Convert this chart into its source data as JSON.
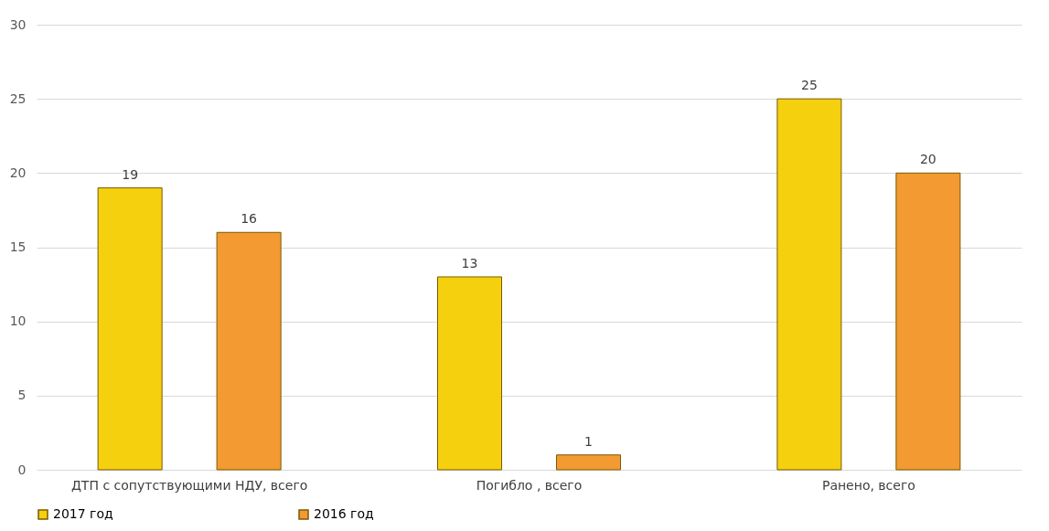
{
  "chart_data": {
    "type": "bar",
    "categories": [
      "ДТП с сопутствующими НДУ, всего",
      "Погибло , всего",
      "Ранено, всего"
    ],
    "series": [
      {
        "name": "2017 год",
        "color": "#f5d00f",
        "values": [
          19,
          13,
          25
        ]
      },
      {
        "name": "2016 год",
        "color": "#f39a32",
        "values": [
          16,
          1,
          20
        ]
      }
    ],
    "ylim": [
      0,
      30
    ],
    "yticks": [
      0,
      5,
      10,
      15,
      20,
      25,
      30
    ],
    "grid": "y",
    "data_labels": true,
    "legend": "bottom"
  }
}
